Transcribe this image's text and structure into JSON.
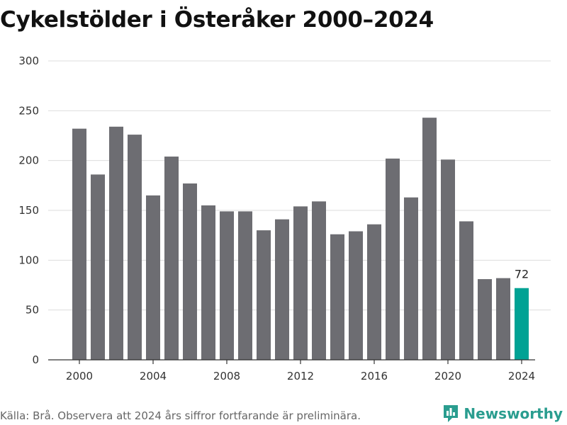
{
  "title": "Cykelstölder i Österåker 2000–2024",
  "footer": "Källa: Brå. Observera att 2024 års siffror fortfarande är preliminära.",
  "logo": {
    "text": "Newsworthy",
    "icon": "newsworthy-logo-icon"
  },
  "colors": {
    "bar": "#6d6d72",
    "highlight": "#00a294",
    "grid": "#dddddd",
    "axis": "#333333"
  },
  "chart_data": {
    "type": "bar",
    "title": "Cykelstölder i Österåker 2000–2024",
    "xlabel": "",
    "ylabel": "",
    "ylim": [
      0,
      300
    ],
    "yticks": [
      0,
      50,
      100,
      150,
      200,
      250,
      300
    ],
    "xticks": [
      2000,
      2004,
      2008,
      2012,
      2016,
      2020,
      2024
    ],
    "categories": [
      2000,
      2001,
      2002,
      2003,
      2004,
      2005,
      2006,
      2007,
      2008,
      2009,
      2010,
      2011,
      2012,
      2013,
      2014,
      2015,
      2016,
      2017,
      2018,
      2019,
      2020,
      2021,
      2022,
      2023,
      2024
    ],
    "values": [
      232,
      186,
      234,
      226,
      165,
      204,
      177,
      155,
      149,
      149,
      130,
      141,
      154,
      159,
      126,
      129,
      136,
      202,
      163,
      243,
      201,
      139,
      81,
      82,
      72
    ],
    "highlight": {
      "category": 2024,
      "label": "72"
    },
    "grid": true
  }
}
